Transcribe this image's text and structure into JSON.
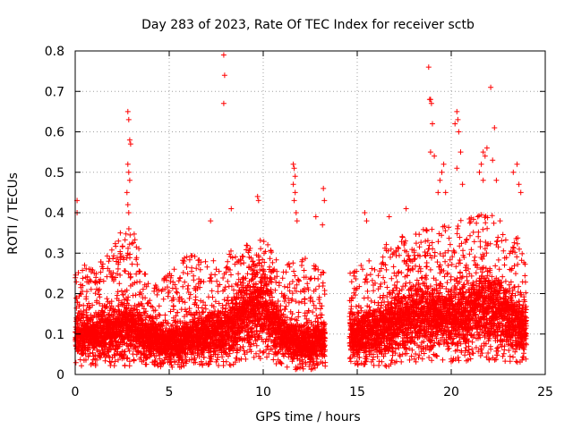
{
  "chart_data": {
    "type": "scatter",
    "title": "Day 283 of 2023, Rate Of TEC Index for receiver sctb",
    "xlabel": "GPS time / hours",
    "ylabel": "ROTI / TECUs",
    "xlim": [
      0,
      25
    ],
    "ylim": [
      0,
      0.8
    ],
    "xticks": [
      0,
      5,
      10,
      15,
      20,
      25
    ],
    "yticks": [
      0,
      0.1,
      0.2,
      0.3,
      0.4,
      0.5,
      0.6,
      0.7,
      0.8
    ],
    "grid": true,
    "marker": "+",
    "color": "#ff0000",
    "data_gap_hours": [
      13.3,
      14.6
    ],
    "band_profile": {
      "note": "Dense per-epoch ROTI scatter. Points sampled across each block with typical value, upper-envelope and floor (TECU/min) following the plotted distribution.",
      "blocks": [
        {
          "x_range": [
            0.0,
            13.3
          ]
        },
        {
          "x_range": [
            14.6,
            24.0
          ]
        }
      ],
      "envelope": [
        {
          "t": 0.0,
          "median": 0.08,
          "upper": 0.25,
          "floor": 0.02
        },
        {
          "t": 1.0,
          "median": 0.09,
          "upper": 0.27,
          "floor": 0.02
        },
        {
          "t": 2.0,
          "median": 0.1,
          "upper": 0.32,
          "floor": 0.02
        },
        {
          "t": 3.0,
          "median": 0.11,
          "upper": 0.37,
          "floor": 0.02
        },
        {
          "t": 4.0,
          "median": 0.08,
          "upper": 0.22,
          "floor": 0.02
        },
        {
          "t": 5.0,
          "median": 0.07,
          "upper": 0.25,
          "floor": 0.015
        },
        {
          "t": 6.0,
          "median": 0.08,
          "upper": 0.3,
          "floor": 0.015
        },
        {
          "t": 7.0,
          "median": 0.09,
          "upper": 0.28,
          "floor": 0.02
        },
        {
          "t": 8.0,
          "median": 0.1,
          "upper": 0.3,
          "floor": 0.02
        },
        {
          "t": 9.0,
          "median": 0.14,
          "upper": 0.32,
          "floor": 0.03
        },
        {
          "t": 10.0,
          "median": 0.15,
          "upper": 0.34,
          "floor": 0.04
        },
        {
          "t": 11.0,
          "median": 0.09,
          "upper": 0.27,
          "floor": 0.015
        },
        {
          "t": 12.0,
          "median": 0.07,
          "upper": 0.3,
          "floor": 0.01
        },
        {
          "t": 13.3,
          "median": 0.08,
          "upper": 0.25,
          "floor": 0.01
        },
        {
          "t": 14.6,
          "median": 0.08,
          "upper": 0.25,
          "floor": 0.02
        },
        {
          "t": 16.0,
          "median": 0.1,
          "upper": 0.3,
          "floor": 0.02
        },
        {
          "t": 17.0,
          "median": 0.12,
          "upper": 0.34,
          "floor": 0.02
        },
        {
          "t": 18.0,
          "median": 0.13,
          "upper": 0.35,
          "floor": 0.03
        },
        {
          "t": 19.0,
          "median": 0.13,
          "upper": 0.37,
          "floor": 0.03
        },
        {
          "t": 20.0,
          "median": 0.13,
          "upper": 0.38,
          "floor": 0.03
        },
        {
          "t": 21.0,
          "median": 0.14,
          "upper": 0.39,
          "floor": 0.03
        },
        {
          "t": 22.0,
          "median": 0.15,
          "upper": 0.4,
          "floor": 0.03
        },
        {
          "t": 23.0,
          "median": 0.13,
          "upper": 0.38,
          "floor": 0.03
        },
        {
          "t": 24.0,
          "median": 0.1,
          "upper": 0.3,
          "floor": 0.03
        }
      ]
    },
    "outliers": [
      [
        0.1,
        0.43
      ],
      [
        0.1,
        0.4
      ],
      [
        0.5,
        0.27
      ],
      [
        2.8,
        0.65
      ],
      [
        2.85,
        0.63
      ],
      [
        2.9,
        0.58
      ],
      [
        2.95,
        0.57
      ],
      [
        2.8,
        0.52
      ],
      [
        2.85,
        0.5
      ],
      [
        2.9,
        0.48
      ],
      [
        2.75,
        0.45
      ],
      [
        2.8,
        0.42
      ],
      [
        2.85,
        0.4
      ],
      [
        2.4,
        0.35
      ],
      [
        2.3,
        0.33
      ],
      [
        7.9,
        0.79
      ],
      [
        7.95,
        0.74
      ],
      [
        7.9,
        0.67
      ],
      [
        8.3,
        0.41
      ],
      [
        7.2,
        0.38
      ],
      [
        9.7,
        0.44
      ],
      [
        9.75,
        0.43
      ],
      [
        11.6,
        0.52
      ],
      [
        11.65,
        0.51
      ],
      [
        11.7,
        0.49
      ],
      [
        11.6,
        0.47
      ],
      [
        11.7,
        0.45
      ],
      [
        11.65,
        0.43
      ],
      [
        11.75,
        0.4
      ],
      [
        11.8,
        0.38
      ],
      [
        12.8,
        0.39
      ],
      [
        13.2,
        0.46
      ],
      [
        13.25,
        0.43
      ],
      [
        13.15,
        0.37
      ],
      [
        15.4,
        0.4
      ],
      [
        15.5,
        0.38
      ],
      [
        16.7,
        0.39
      ],
      [
        17.6,
        0.41
      ],
      [
        18.8,
        0.76
      ],
      [
        18.85,
        0.68
      ],
      [
        18.9,
        0.68
      ],
      [
        18.95,
        0.67
      ],
      [
        19.0,
        0.62
      ],
      [
        18.9,
        0.55
      ],
      [
        19.1,
        0.54
      ],
      [
        19.5,
        0.5
      ],
      [
        19.6,
        0.52
      ],
      [
        19.4,
        0.48
      ],
      [
        19.7,
        0.45
      ],
      [
        19.3,
        0.45
      ],
      [
        20.3,
        0.65
      ],
      [
        20.35,
        0.63
      ],
      [
        20.2,
        0.62
      ],
      [
        20.4,
        0.6
      ],
      [
        20.5,
        0.55
      ],
      [
        20.3,
        0.51
      ],
      [
        20.6,
        0.47
      ],
      [
        21.5,
        0.5
      ],
      [
        21.6,
        0.52
      ],
      [
        21.7,
        0.55
      ],
      [
        21.8,
        0.54
      ],
      [
        21.9,
        0.56
      ],
      [
        21.7,
        0.48
      ],
      [
        22.1,
        0.71
      ],
      [
        22.3,
        0.61
      ],
      [
        22.2,
        0.53
      ],
      [
        22.4,
        0.48
      ],
      [
        23.3,
        0.5
      ],
      [
        23.5,
        0.52
      ],
      [
        23.6,
        0.47
      ],
      [
        23.7,
        0.45
      ]
    ]
  }
}
